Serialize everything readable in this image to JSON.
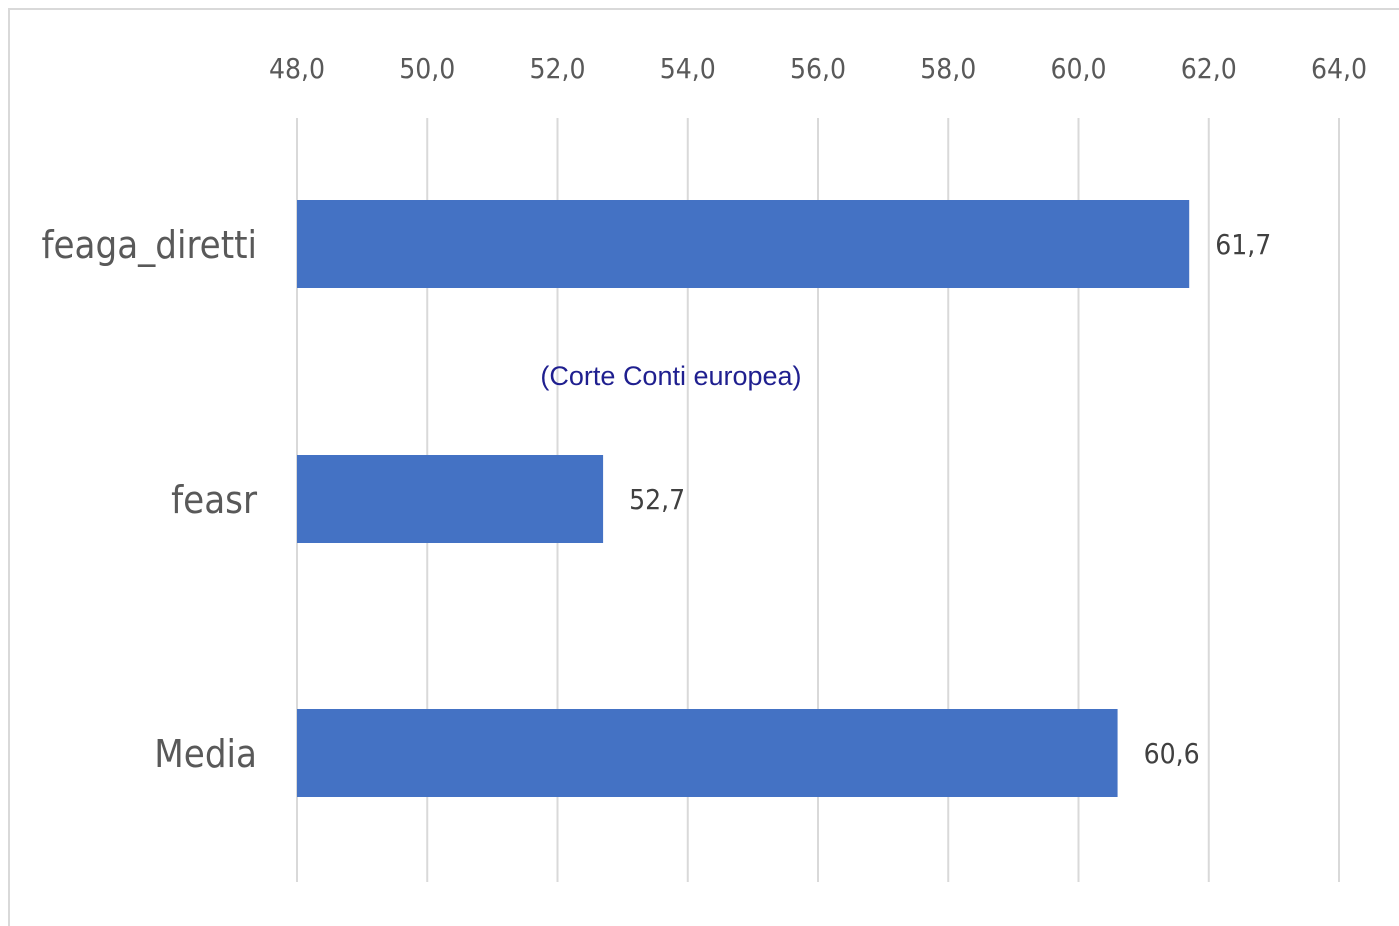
{
  "chart_data": {
    "type": "bar",
    "orientation": "horizontal",
    "categories": [
      "feaga_diretti",
      "feasr",
      "Media"
    ],
    "values": [
      61.7,
      52.7,
      60.6
    ],
    "value_labels": [
      "61,7",
      "52,7",
      "60,6"
    ],
    "xlim": [
      48.0,
      64.0
    ],
    "xticks": [
      "48,0",
      "50,0",
      "52,0",
      "54,0",
      "56,0",
      "58,0",
      "60,0",
      "62,0",
      "64,0"
    ],
    "xaxis_position": "top",
    "grid": true,
    "legend": "none",
    "annotation": "(Corte Conti europea)",
    "bar_color": "#4472c4",
    "gridline_color": "#d9d9d9"
  }
}
